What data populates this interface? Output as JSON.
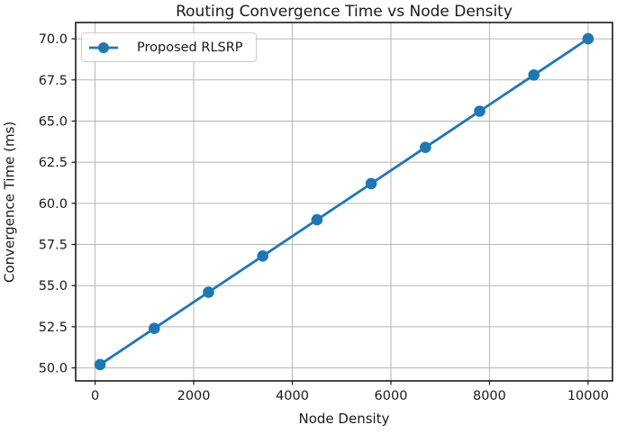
{
  "chart_data": {
    "type": "line",
    "title": "Routing Convergence Time vs Node Density",
    "xlabel": "Node Density",
    "ylabel": "Convergence Time (ms)",
    "series": [
      {
        "name": "Proposed RLSRP",
        "color": "#1f77b4",
        "marker": "circle",
        "x": [
          100,
          1200,
          2300,
          3400,
          4500,
          5600,
          6700,
          7800,
          8900,
          10000
        ],
        "y": [
          50.2,
          52.4,
          54.6,
          56.8,
          59.0,
          61.2,
          63.4,
          65.6,
          67.8,
          70.0
        ]
      }
    ],
    "xlim": [
      -395,
      10495
    ],
    "ylim": [
      49.21,
      70.99
    ],
    "xticks": {
      "values": [
        0,
        2000,
        4000,
        6000,
        8000,
        10000
      ],
      "labels": [
        "0",
        "2000",
        "4000",
        "6000",
        "8000",
        "10000"
      ]
    },
    "yticks": {
      "values": [
        50.0,
        52.5,
        55.0,
        57.5,
        60.0,
        62.5,
        65.0,
        67.5,
        70.0
      ],
      "labels": [
        "50.0",
        "52.5",
        "55.0",
        "57.5",
        "60.0",
        "62.5",
        "65.0",
        "67.5",
        "70.0"
      ]
    },
    "grid": true,
    "legend": {
      "position": "upper-left",
      "entries": [
        "Proposed RLSRP"
      ]
    },
    "colors": {
      "grid": "#b5b5b5",
      "spine": "#1a1a1a",
      "text": "#1a1a1a"
    }
  }
}
